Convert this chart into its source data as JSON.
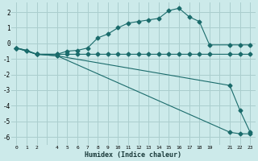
{
  "xlabel": "Humidex (Indice chaleur)",
  "bg_color": "#cceaea",
  "grid_color": "#aacece",
  "line_color": "#1a6b6b",
  "xlim": [
    -0.5,
    23.5
  ],
  "ylim": [
    -6.5,
    2.6
  ],
  "xticks": [
    0,
    1,
    2,
    3,
    4,
    5,
    6,
    7,
    8,
    9,
    10,
    11,
    12,
    13,
    14,
    15,
    16,
    17,
    18,
    19,
    20,
    21,
    22,
    23
  ],
  "xtick_labels": [
    "0",
    "1",
    "2",
    "",
    "4",
    "5",
    "6",
    "7",
    "8",
    "9",
    "10",
    "11",
    "12",
    "13",
    "14",
    "15",
    "16",
    "17",
    "18",
    "19",
    "",
    "21",
    "22",
    "23"
  ],
  "yticks": [
    -6,
    -5,
    -4,
    -3,
    -2,
    -1,
    0,
    1,
    2
  ],
  "line1_x": [
    0,
    1,
    2,
    4,
    5,
    6,
    7,
    8,
    9,
    10,
    11,
    12,
    13,
    14,
    15,
    16,
    17,
    18,
    19,
    21,
    22,
    23
  ],
  "line1_y": [
    -0.3,
    -0.45,
    -0.7,
    -0.7,
    -0.5,
    -0.45,
    -0.3,
    0.35,
    0.6,
    1.0,
    1.3,
    1.4,
    1.5,
    1.6,
    2.1,
    2.25,
    1.7,
    1.4,
    -0.1,
    -0.1,
    -0.1,
    -0.1
  ],
  "line2_x": [
    0,
    1,
    2,
    4,
    5,
    6,
    7,
    8,
    9,
    10,
    11,
    12,
    13,
    14,
    15,
    16,
    17,
    18,
    19,
    21,
    22,
    23
  ],
  "line2_y": [
    -0.3,
    -0.45,
    -0.7,
    -0.7,
    -0.7,
    -0.7,
    -0.7,
    -0.7,
    -0.7,
    -0.7,
    -0.7,
    -0.7,
    -0.7,
    -0.7,
    -0.7,
    -0.7,
    -0.7,
    -0.7,
    -0.7,
    -0.7,
    -0.7,
    -0.7
  ],
  "line3_x": [
    0,
    2,
    4,
    21,
    22,
    23
  ],
  "line3_y": [
    -0.3,
    -0.7,
    -0.8,
    -2.7,
    -4.3,
    -5.7
  ],
  "line4_x": [
    0,
    2,
    4,
    21,
    22,
    23
  ],
  "line4_y": [
    -0.3,
    -0.7,
    -0.8,
    -5.7,
    -5.8,
    -5.8
  ],
  "marker_style": "D",
  "marker_size": 2.5
}
